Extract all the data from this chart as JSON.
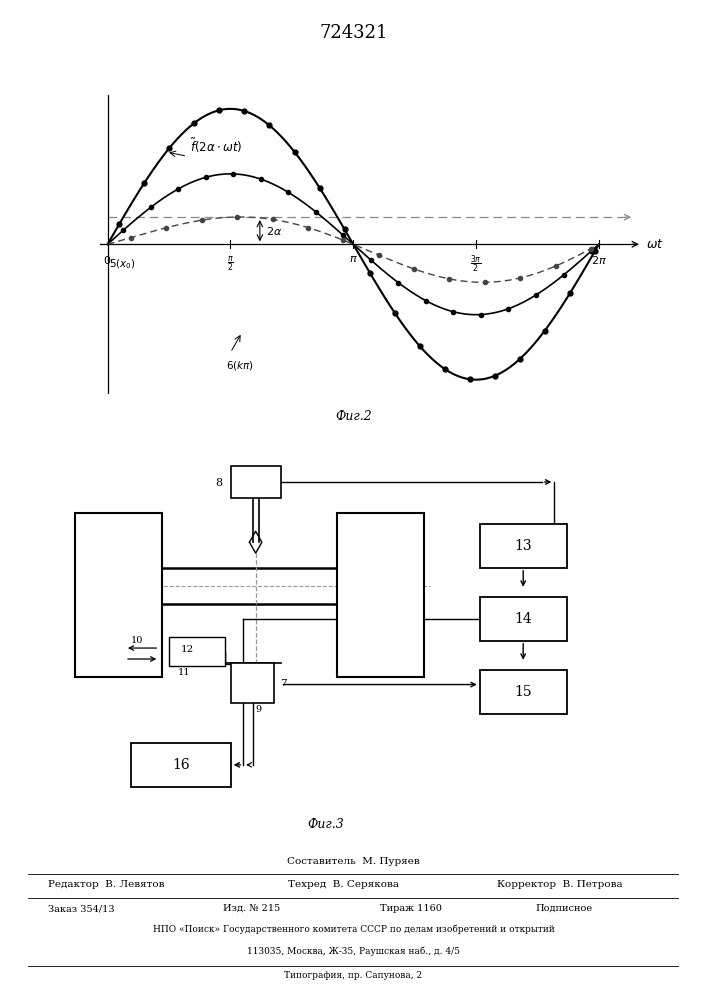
{
  "title": "724321",
  "fig2_label": "Фиг.2",
  "fig3_label": "Фиг.3",
  "bg_color": "#ffffff",
  "bottom_text": {
    "sostavitel": "Составитель  М. Пуряев",
    "redaktor": "Редактор  В. Левятов",
    "tekhred": "Техред  В. Серякова",
    "korrektor": "Корректор  В. Петрова",
    "zakaz": "Заказ 354/13",
    "izd": "Изд. № 215",
    "tirazh": "Тираж 1160",
    "podpisnoe": "Подписное",
    "npo": "НПО «Поиск» Государственного комитета СССР по делам изобретений и открытий",
    "address": "113035, Москва, Ж-35, Раушская наб., д. 4/5",
    "tipografia": "Типография, пр. Сапунова, 2"
  }
}
